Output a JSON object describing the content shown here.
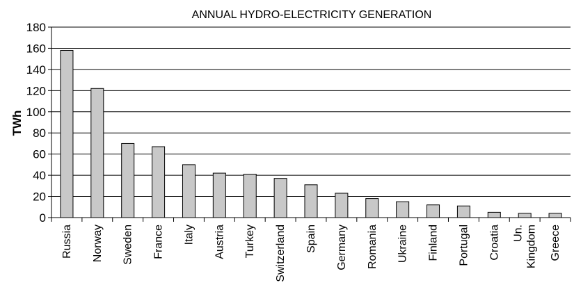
{
  "chart_data": {
    "type": "bar",
    "title": "ANNUAL HYDRO-ELECTRICITY GENERATION",
    "ylabel": "TWh",
    "xlabel": "",
    "ylim": [
      0,
      180
    ],
    "yticks": [
      0,
      20,
      40,
      60,
      80,
      100,
      120,
      140,
      160,
      180
    ],
    "grid": true,
    "categories": [
      "Russia",
      "Norway",
      "Sweden",
      "France",
      "Italy",
      "Austria",
      "Turkey",
      "Switzerland",
      "Spain",
      "Germany",
      "Romania",
      "Ukraine",
      "Finland",
      "Portugal",
      "Croatia",
      "Un. Kingdom",
      "Greece"
    ],
    "category_lines": [
      [
        "Russia"
      ],
      [
        "Norway"
      ],
      [
        "Sweden"
      ],
      [
        "France"
      ],
      [
        "Italy"
      ],
      [
        "Austria"
      ],
      [
        "Turkey"
      ],
      [
        "Switzerland"
      ],
      [
        "Spain"
      ],
      [
        "Germany"
      ],
      [
        "Romania"
      ],
      [
        "Ukraine"
      ],
      [
        "Finland"
      ],
      [
        "Portugal"
      ],
      [
        "Croatia"
      ],
      [
        "Un.",
        "Kingdom"
      ],
      [
        "Greece"
      ]
    ],
    "values": [
      158,
      122,
      70,
      67,
      50,
      42,
      41,
      37,
      31,
      23,
      18,
      15,
      12,
      11,
      5,
      4,
      4
    ],
    "colors": {
      "bar": "#c8c8c8",
      "stroke": "#000000"
    }
  }
}
